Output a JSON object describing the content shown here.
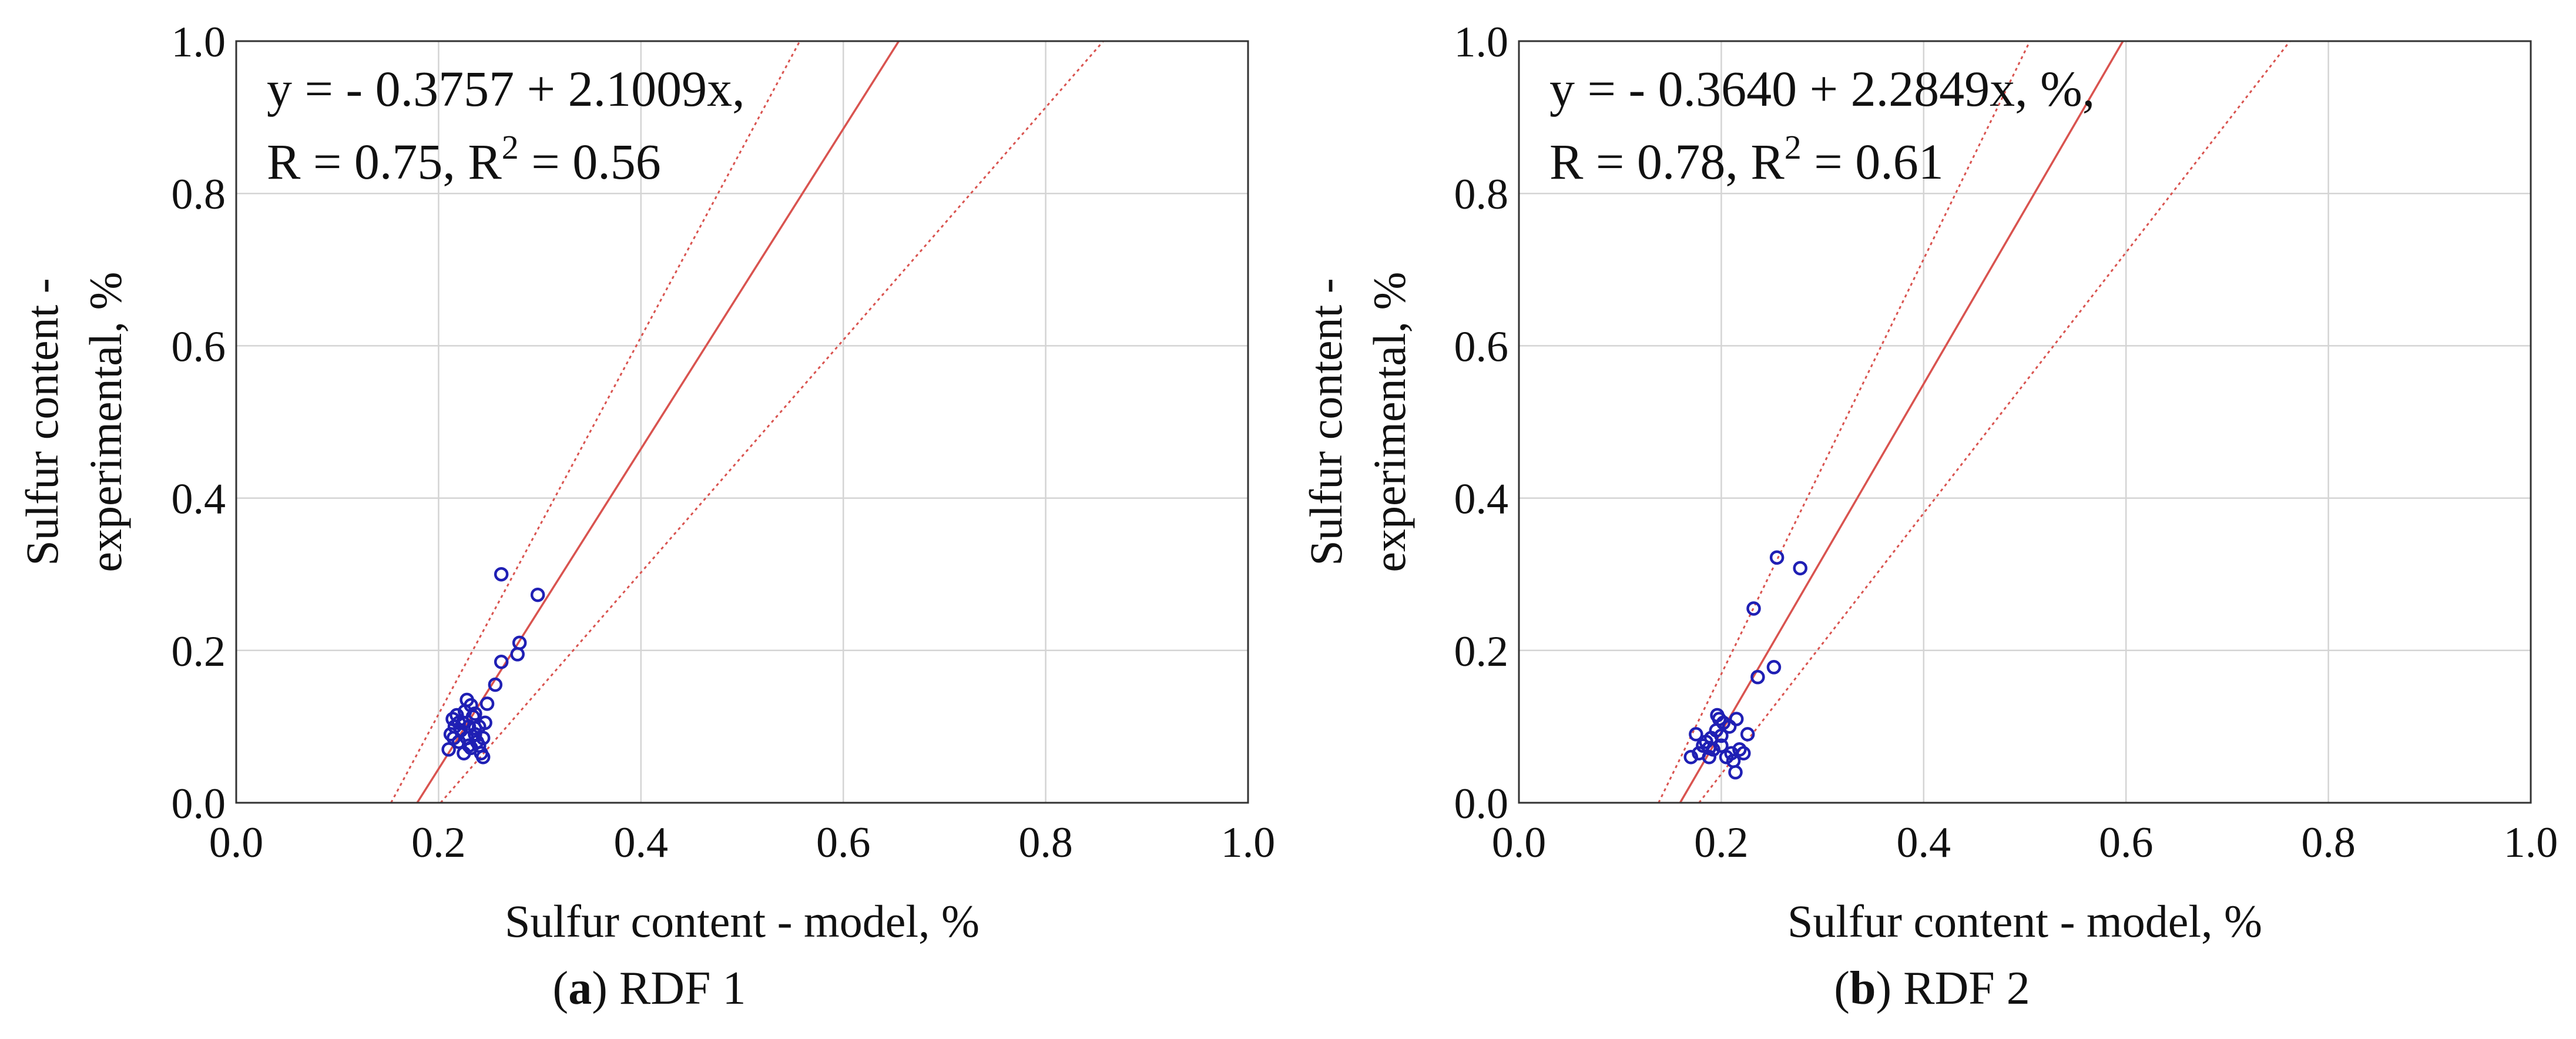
{
  "chart_data": [
    {
      "type": "scatter",
      "caption_letter": "a",
      "caption_rest": ") RDF 1",
      "caption_open": "(",
      "xlabel": "Sulfur content - model, %",
      "ylabel_line1": "Sulfur content -",
      "ylabel_line2": "experimental, %",
      "xlim": [
        0,
        1
      ],
      "ylim": [
        0,
        1
      ],
      "xticks": [
        "0.0",
        "0.2",
        "0.4",
        "0.6",
        "0.8",
        "1.0"
      ],
      "yticks": [
        "0.0",
        "0.2",
        "0.4",
        "0.6",
        "0.8",
        "1.0"
      ],
      "grid": true,
      "annotation_line1": "y = - 0.3757 + 2.1009x,",
      "annotation_line2_a": "R = 0.75, R",
      "annotation_line2_sup": "2",
      "annotation_line2_b": " = 0.56",
      "fit": {
        "intercept": -0.3757,
        "slope": 2.1009,
        "color": "#d9534f"
      },
      "confidence_lower_x_at_y0": 0.153,
      "confidence_lower_x_at_y1": 0.557,
      "confidence_upper_x_at_y0": 0.202,
      "confidence_upper_x_at_y1": 0.857,
      "point_color": "#1f1fb4",
      "points": [
        [
          0.21,
          0.07
        ],
        [
          0.212,
          0.09
        ],
        [
          0.214,
          0.11
        ],
        [
          0.216,
          0.1
        ],
        [
          0.218,
          0.115
        ],
        [
          0.22,
          0.08
        ],
        [
          0.222,
          0.095
        ],
        [
          0.224,
          0.105
        ],
        [
          0.226,
          0.12
        ],
        [
          0.228,
          0.085
        ],
        [
          0.23,
          0.1
        ],
        [
          0.232,
          0.072
        ],
        [
          0.234,
          0.113
        ],
        [
          0.236,
          0.09
        ],
        [
          0.238,
          0.08
        ],
        [
          0.24,
          0.1
        ],
        [
          0.242,
          0.065
        ],
        [
          0.244,
          0.085
        ],
        [
          0.228,
          0.135
        ],
        [
          0.232,
          0.128
        ],
        [
          0.236,
          0.117
        ],
        [
          0.246,
          0.105
        ],
        [
          0.248,
          0.13
        ],
        [
          0.23,
          0.075
        ],
        [
          0.225,
          0.065
        ],
        [
          0.22,
          0.105
        ],
        [
          0.215,
          0.085
        ],
        [
          0.24,
          0.075
        ],
        [
          0.236,
          0.098
        ],
        [
          0.244,
          0.06
        ],
        [
          0.256,
          0.155
        ],
        [
          0.262,
          0.185
        ],
        [
          0.278,
          0.195
        ],
        [
          0.28,
          0.21
        ],
        [
          0.262,
          0.3
        ],
        [
          0.298,
          0.273
        ]
      ]
    },
    {
      "type": "scatter",
      "caption_letter": "b",
      "caption_rest": ") RDF 2",
      "caption_open": "(",
      "xlabel": "Sulfur content - model, %",
      "ylabel_line1": "Sulfur content -",
      "ylabel_line2": "experimental, %",
      "xlim": [
        0,
        1
      ],
      "ylim": [
        0,
        1
      ],
      "xticks": [
        "0.0",
        "0.2",
        "0.4",
        "0.6",
        "0.8",
        "1.0"
      ],
      "yticks": [
        "0.0",
        "0.2",
        "0.4",
        "0.6",
        "0.8",
        "1.0"
      ],
      "grid": true,
      "annotation_line1": "y = - 0.3640 + 2.2849x, %,",
      "annotation_line2_a": "R = 0.78, R",
      "annotation_line2_sup": "2",
      "annotation_line2_b": " = 0.61",
      "fit": {
        "intercept": -0.364,
        "slope": 2.2849,
        "color": "#d9534f"
      },
      "confidence_lower_x_at_y0": 0.138,
      "confidence_lower_x_at_y1": 0.505,
      "confidence_upper_x_at_y0": 0.178,
      "confidence_upper_x_at_y1": 0.762,
      "point_color": "#1f1fb4",
      "points": [
        [
          0.17,
          0.06
        ],
        [
          0.175,
          0.09
        ],
        [
          0.178,
          0.065
        ],
        [
          0.182,
          0.075
        ],
        [
          0.185,
          0.08
        ],
        [
          0.188,
          0.06
        ],
        [
          0.19,
          0.085
        ],
        [
          0.192,
          0.07
        ],
        [
          0.195,
          0.095
        ],
        [
          0.198,
          0.11
        ],
        [
          0.2,
          0.075
        ],
        [
          0.202,
          0.105
        ],
        [
          0.205,
          0.06
        ],
        [
          0.208,
          0.1
        ],
        [
          0.21,
          0.065
        ],
        [
          0.212,
          0.055
        ],
        [
          0.215,
          0.11
        ],
        [
          0.218,
          0.07
        ],
        [
          0.214,
          0.04
        ],
        [
          0.222,
          0.065
        ],
        [
          0.226,
          0.09
        ],
        [
          0.196,
          0.115
        ],
        [
          0.188,
          0.072
        ],
        [
          0.2,
          0.088
        ],
        [
          0.232,
          0.255
        ],
        [
          0.236,
          0.165
        ],
        [
          0.252,
          0.178
        ],
        [
          0.255,
          0.322
        ],
        [
          0.278,
          0.308
        ]
      ]
    }
  ]
}
